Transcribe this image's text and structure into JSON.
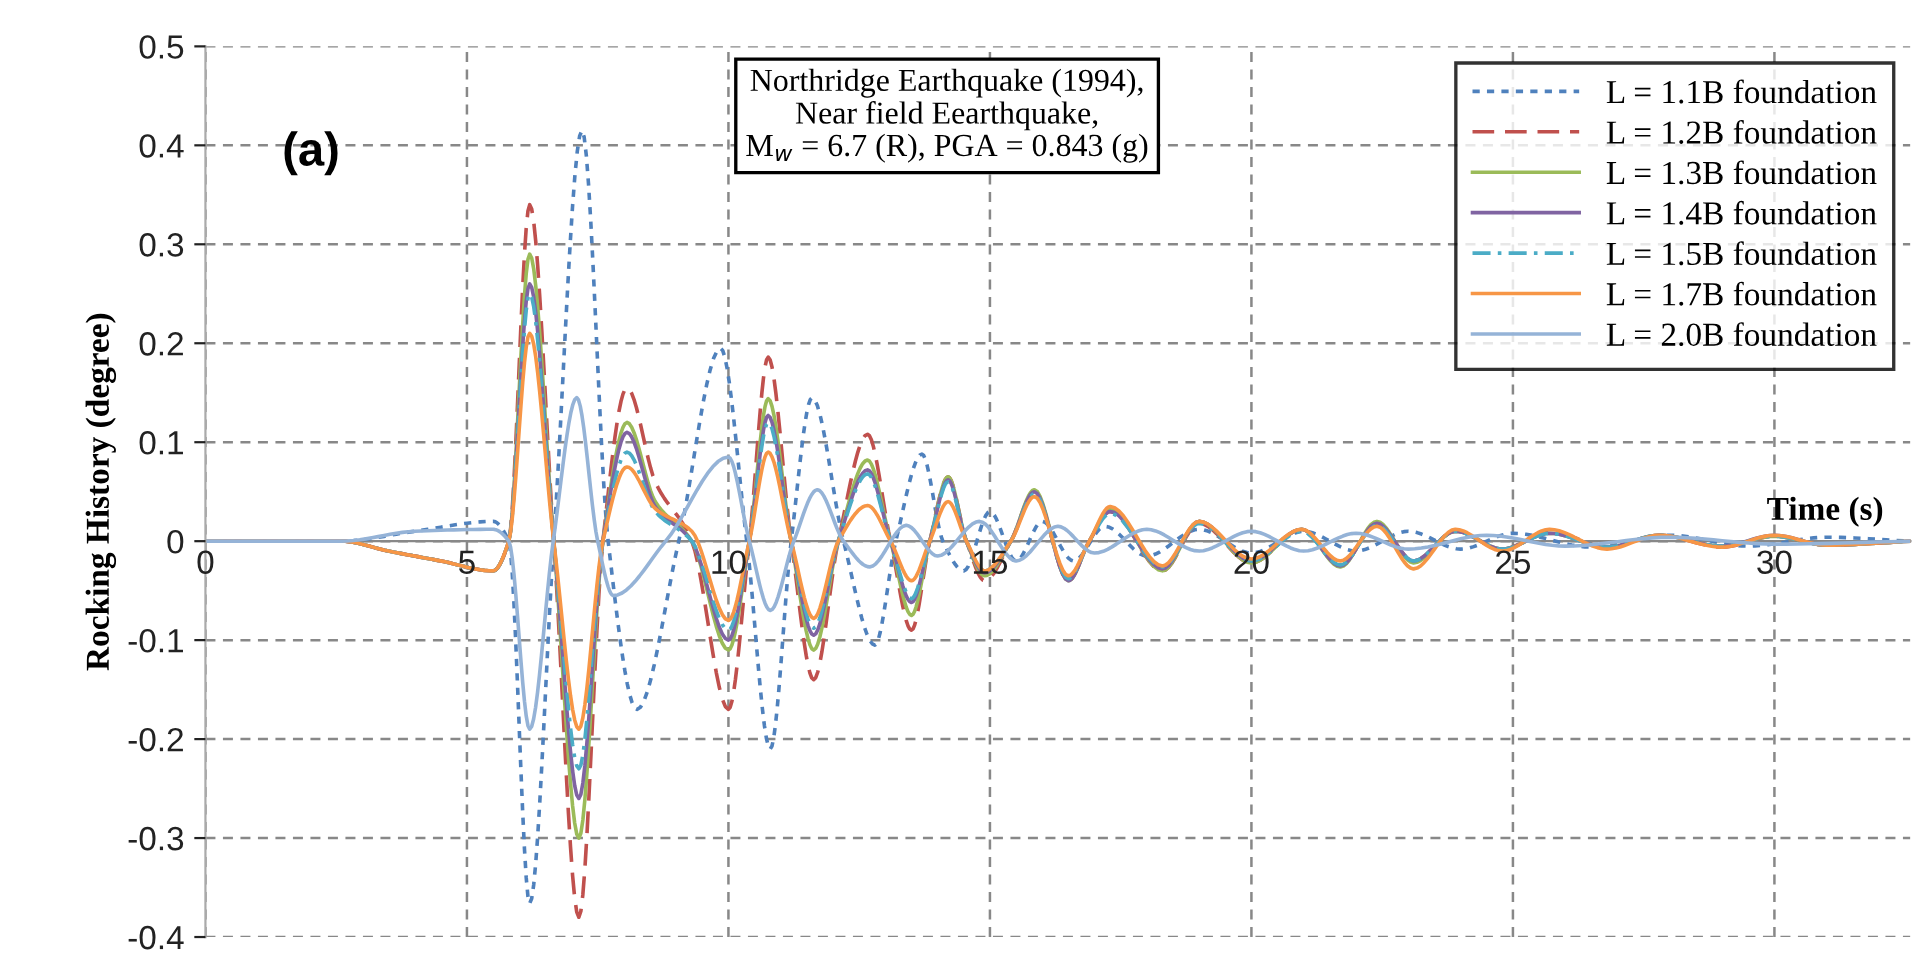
{
  "chart_data": {
    "type": "line",
    "xlabel": "Time (s)",
    "ylabel": "Rocking History (degree)",
    "xlim": [
      0,
      32.6
    ],
    "xticks": [
      0,
      5,
      10,
      15,
      20,
      25,
      30
    ],
    "ylim": [
      -0.4,
      0.5
    ],
    "yticks": [
      -0.4,
      -0.3,
      -0.2,
      -0.1,
      0,
      0.1,
      0.2,
      0.3,
      0.4,
      0.5
    ],
    "grid": true,
    "legend": "top right",
    "marker": "none",
    "annotations": [
      "(a)",
      "Northridge Earthquake (1994),\nNear field Eearthquake,\nM$_{w}$ = 6.7 (R), PGA = 0.843 (g)"
    ],
    "series": [
      {
        "name": "L = 1.1B foundation",
        "color": "#4f81bd",
        "line_style": "dotted",
        "x": [
          0,
          2.6,
          4,
          5.5,
          5.8,
          6.2,
          6.66,
          7.2,
          7.7,
          8.25,
          9.05,
          9.85,
          10.35,
          10.8,
          11.2,
          11.6,
          12.2,
          12.8,
          13.2,
          13.7,
          14.1,
          14.5,
          15.0,
          15.5,
          16.0,
          16.6,
          17.2,
          18.0,
          19.0,
          20.0,
          21.0,
          22.0,
          23.0,
          24.0,
          25.0,
          26.5,
          28.0,
          29.5,
          31.0,
          32.6
        ],
        "values": [
          0,
          0,
          0.01,
          0.02,
          0,
          -0.366,
          0,
          0.415,
          0,
          -0.17,
          0,
          0.195,
          0,
          -0.21,
          0,
          0.145,
          0,
          -0.105,
          0,
          0.088,
          0,
          -0.03,
          0.03,
          -0.02,
          0.02,
          -0.02,
          0.015,
          -0.015,
          0.012,
          -0.012,
          0.01,
          -0.01,
          0.01,
          -0.008,
          0.008,
          -0.006,
          0.006,
          -0.005,
          0.004,
          0
        ]
      },
      {
        "name": "L = 1.2B foundation",
        "color": "#c0504d",
        "line_style": "dashed",
        "x": [
          0,
          2.6,
          3.5,
          4.5,
          5.5,
          5.8,
          6.2,
          6.66,
          7.14,
          7.6,
          8.06,
          8.6,
          9.3,
          10.0,
          10.4,
          10.76,
          11.2,
          11.63,
          12.1,
          12.66,
          13.1,
          13.5,
          13.85,
          14.2,
          14.55,
          14.9,
          15.4,
          15.85,
          16.5,
          16.9,
          17.3,
          18.3,
          19.0,
          20.0,
          20.96,
          21.7,
          22.4,
          23.1,
          23.9,
          24.8,
          25.7,
          26.8,
          27.8,
          29.0,
          30.0,
          31.0,
          32.6
        ],
        "values": [
          0,
          0,
          -0.01,
          -0.02,
          -0.03,
          0,
          0.34,
          0,
          -0.38,
          0,
          0.155,
          0.06,
          0,
          -0.17,
          0,
          0.186,
          0,
          -0.14,
          0,
          0.108,
          0,
          -0.09,
          0,
          0.065,
          0,
          -0.04,
          0,
          0.05,
          -0.04,
          0,
          0.03,
          -0.03,
          0.018,
          -0.022,
          0.012,
          -0.025,
          0.018,
          -0.02,
          0.01,
          -0.008,
          0.01,
          -0.006,
          0.006,
          -0.006,
          0.005,
          -0.004,
          0
        ]
      },
      {
        "name": "L = 1.3B foundation",
        "color": "#9bbb59",
        "line_style": "solid",
        "x": [
          0,
          2.6,
          3.5,
          4.5,
          5.5,
          5.8,
          6.2,
          6.66,
          7.14,
          7.6,
          8.06,
          8.6,
          9.3,
          10.0,
          10.4,
          10.76,
          11.2,
          11.63,
          12.1,
          12.66,
          13.1,
          13.5,
          13.85,
          14.2,
          14.55,
          14.9,
          15.4,
          15.85,
          16.5,
          16.9,
          17.3,
          18.3,
          19.0,
          20.0,
          20.96,
          21.7,
          22.4,
          23.1,
          23.9,
          24.8,
          25.7,
          26.8,
          27.8,
          29.0,
          30.0,
          31.0,
          32.6
        ],
        "values": [
          0,
          0,
          -0.01,
          -0.02,
          -0.03,
          0,
          0.29,
          0,
          -0.3,
          0,
          0.12,
          0.04,
          0,
          -0.11,
          0,
          0.144,
          0,
          -0.11,
          0,
          0.082,
          0,
          -0.075,
          0,
          0.065,
          0,
          -0.035,
          0,
          0.052,
          -0.04,
          0,
          0.032,
          -0.03,
          0.02,
          -0.022,
          0.012,
          -0.026,
          0.02,
          -0.022,
          0.01,
          -0.008,
          0.008,
          -0.006,
          0.006,
          -0.005,
          0.005,
          -0.004,
          0
        ]
      },
      {
        "name": "L = 1.4B foundation",
        "color": "#8064a2",
        "line_style": "solid",
        "x": [
          0,
          2.6,
          3.5,
          4.5,
          5.5,
          5.8,
          6.2,
          6.66,
          7.14,
          7.6,
          8.06,
          8.6,
          9.3,
          10.0,
          10.4,
          10.76,
          11.2,
          11.63,
          12.1,
          12.66,
          13.1,
          13.5,
          13.85,
          14.2,
          14.55,
          14.9,
          15.4,
          15.85,
          16.5,
          16.9,
          17.3,
          18.3,
          19.0,
          20.0,
          20.96,
          21.7,
          22.4,
          23.1,
          23.9,
          24.8,
          25.7,
          26.8,
          27.8,
          29.0,
          30.0,
          31.0,
          32.6
        ],
        "values": [
          0,
          0,
          -0.01,
          -0.02,
          -0.03,
          0,
          0.26,
          0,
          -0.26,
          0,
          0.11,
          0.035,
          0,
          -0.1,
          0,
          0.127,
          0,
          -0.095,
          0,
          0.072,
          0,
          -0.062,
          0,
          0.062,
          0,
          -0.032,
          0,
          0.05,
          -0.04,
          0,
          0.03,
          -0.028,
          0.02,
          -0.02,
          0.012,
          -0.025,
          0.018,
          -0.02,
          0.01,
          -0.008,
          0.008,
          -0.006,
          0.006,
          -0.005,
          0.006,
          -0.004,
          0
        ]
      },
      {
        "name": "L = 1.5B foundation",
        "color": "#4bacc6",
        "line_style": "dashdot",
        "x": [
          0,
          2.6,
          3.5,
          4.5,
          5.5,
          5.8,
          6.2,
          6.66,
          7.14,
          7.6,
          8.06,
          8.6,
          9.3,
          10.0,
          10.4,
          10.76,
          11.2,
          11.63,
          12.1,
          12.66,
          13.1,
          13.5,
          13.85,
          14.2,
          14.55,
          14.9,
          15.4,
          15.85,
          16.5,
          16.9,
          17.3,
          18.3,
          19.0,
          20.0,
          20.96,
          21.7,
          22.4,
          23.1,
          23.9,
          24.8,
          25.7,
          26.8,
          27.8,
          29.0,
          30.0,
          31.0,
          32.6
        ],
        "values": [
          0,
          0,
          -0.01,
          -0.02,
          -0.03,
          0,
          0.25,
          0,
          -0.23,
          0,
          0.09,
          0.03,
          0,
          -0.09,
          0,
          0.12,
          0,
          -0.088,
          0,
          0.068,
          0,
          -0.058,
          0,
          0.06,
          0,
          -0.03,
          0,
          0.048,
          -0.038,
          0,
          0.028,
          -0.026,
          0.018,
          -0.02,
          0.01,
          -0.024,
          0.016,
          -0.02,
          0.01,
          -0.008,
          0.008,
          -0.006,
          0.006,
          -0.005,
          0.005,
          -0.004,
          0
        ]
      },
      {
        "name": "L = 1.7B foundation",
        "color": "#f79646",
        "line_style": "solid",
        "x": [
          0,
          2.6,
          3.5,
          4.5,
          5.5,
          5.8,
          6.2,
          6.66,
          7.14,
          7.6,
          8.06,
          8.6,
          9.3,
          10.0,
          10.4,
          10.76,
          11.2,
          11.63,
          12.1,
          12.66,
          13.1,
          13.5,
          13.85,
          14.2,
          14.55,
          14.9,
          15.4,
          15.85,
          16.5,
          16.9,
          17.3,
          18.3,
          19.0,
          20.0,
          20.96,
          21.7,
          22.4,
          23.1,
          23.9,
          24.8,
          25.7,
          26.8,
          27.8,
          29.0,
          30.0,
          31.0,
          32.6
        ],
        "values": [
          0,
          0,
          -0.01,
          -0.02,
          -0.03,
          0,
          0.21,
          0,
          -0.19,
          0,
          0.075,
          0.033,
          0.01,
          -0.08,
          0,
          0.09,
          0,
          -0.078,
          0,
          0.036,
          0,
          -0.04,
          0,
          0.04,
          0,
          -0.03,
          0,
          0.045,
          -0.035,
          0,
          0.035,
          -0.025,
          0.02,
          -0.018,
          0.012,
          -0.02,
          0.015,
          -0.028,
          0.012,
          -0.01,
          0.012,
          -0.008,
          0.006,
          -0.006,
          0.006,
          -0.004,
          0
        ]
      },
      {
        "name": "L = 2.0B foundation",
        "color": "#95b3d7",
        "line_style": "solid",
        "x": [
          0,
          2.6,
          4,
          5.5,
          5.8,
          6.2,
          6.65,
          7.1,
          7.5,
          7.8,
          8.8,
          10.0,
          10.4,
          10.8,
          11.25,
          11.7,
          12.2,
          12.7,
          13.4,
          14.0,
          14.8,
          15.5,
          16.3,
          17.0,
          18.0,
          19.0,
          20.0,
          21.0,
          22.0,
          23.0,
          24.5,
          26.0,
          28.0,
          30.0,
          32.6
        ],
        "values": [
          0,
          0,
          0.01,
          0.012,
          0,
          -0.19,
          0,
          0.145,
          0,
          -0.055,
          0,
          0.085,
          0,
          -0.07,
          0,
          0.052,
          0,
          -0.026,
          0.016,
          -0.015,
          0.02,
          -0.02,
          0.015,
          -0.012,
          0.012,
          -0.01,
          0.01,
          -0.01,
          0.008,
          -0.008,
          0.006,
          -0.005,
          0.004,
          -0.003,
          0
        ]
      }
    ]
  }
}
